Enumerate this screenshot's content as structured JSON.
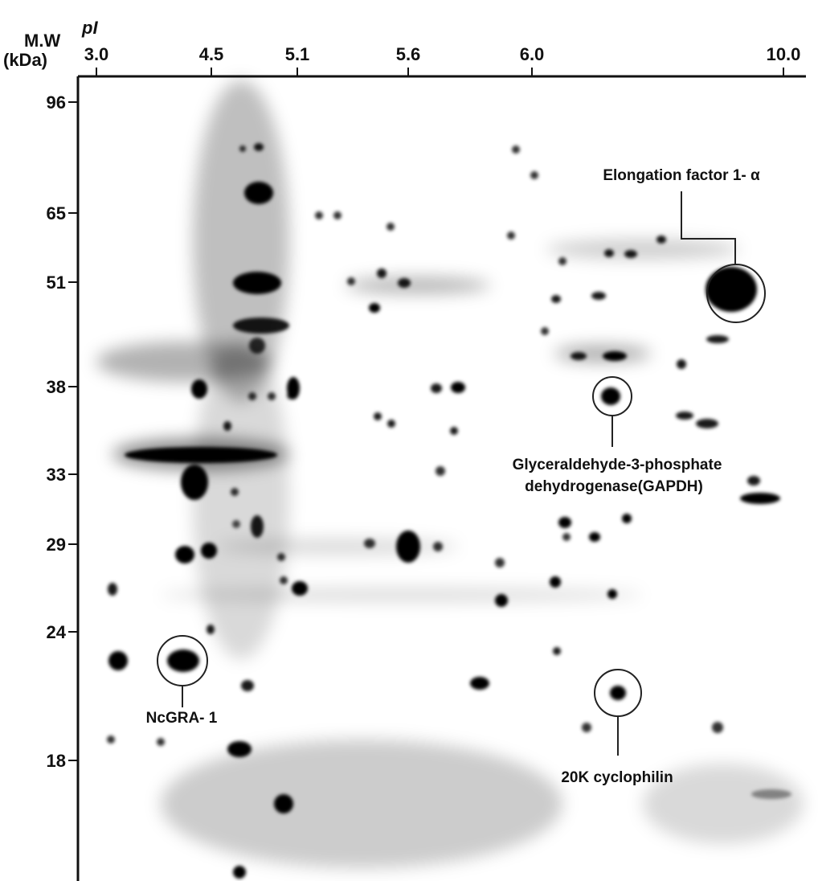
{
  "axes": {
    "x_title": "pI",
    "y_title_line1": "M.W",
    "y_title_line2": "(kDa)",
    "x_ticks": [
      "3.0",
      "4.5",
      "5.1",
      "5.6",
      "6.0",
      "10.0"
    ],
    "y_ticks": [
      "96",
      "65",
      "51",
      "38",
      "33",
      "29",
      "24",
      "18"
    ]
  },
  "annotations": [
    {
      "label": "Elongation factor 1- α"
    },
    {
      "label_line1": "Glyceraldehyde-3-phosphate",
      "label_line2": "dehydrogenase(GAPDH)"
    },
    {
      "label": "NcGRA- 1"
    },
    {
      "label": "20K cyclophilin"
    }
  ]
}
